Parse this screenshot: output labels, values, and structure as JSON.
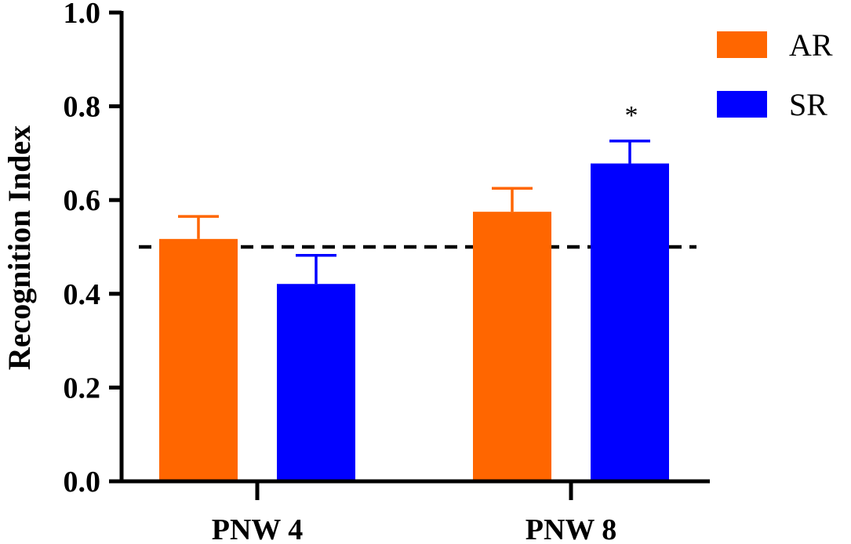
{
  "chart_data": {
    "type": "bar",
    "title": "",
    "xlabel": "",
    "ylabel": "Recognition Index",
    "ylim": [
      0,
      1.0
    ],
    "yticks": [
      "0.0",
      "0.2",
      "0.4",
      "0.6",
      "0.8",
      "1.0"
    ],
    "categories": [
      "PNW 4",
      "PNW 8"
    ],
    "series": [
      {
        "name": "AR",
        "color": "#ff6600",
        "values": [
          0.517,
          0.575
        ],
        "errors": [
          0.048,
          0.05
        ]
      },
      {
        "name": "SR",
        "color": "#0000ff",
        "values": [
          0.421,
          0.678
        ],
        "errors": [
          0.061,
          0.048
        ]
      }
    ],
    "reference_line": {
      "y": 0.5,
      "style": "dashed"
    },
    "annotations": [
      {
        "text": "*",
        "category": "PNW 8",
        "series": "SR"
      }
    ],
    "legend": "top-right",
    "grid": false
  }
}
